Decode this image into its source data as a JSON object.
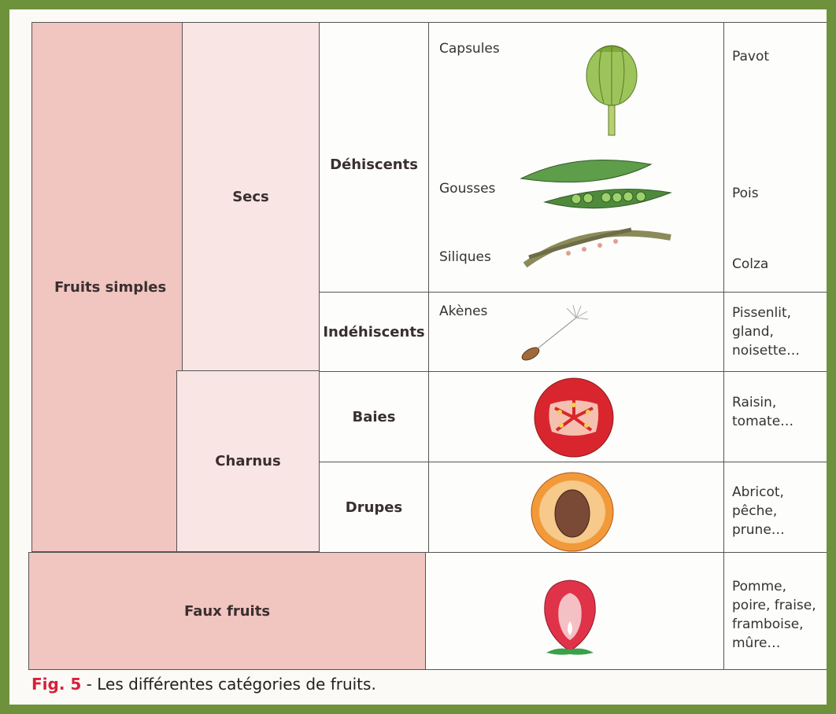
{
  "table": {
    "groups": [
      {
        "label": "Fruits simples",
        "subgroups": [
          {
            "label": "Secs",
            "types": [
              {
                "label": "Déhiscents",
                "kinds": [
                  {
                    "name": "Capsules",
                    "examples": "Pavot"
                  },
                  {
                    "name": "Gousses",
                    "examples": "Pois"
                  },
                  {
                    "name": "Siliques",
                    "examples": "Colza"
                  }
                ]
              },
              {
                "label": "Indéhiscents",
                "kinds": [
                  {
                    "name": "Akènes",
                    "examples": "Pissenlit,\ngland,\nnoisette…"
                  }
                ]
              }
            ]
          },
          {
            "label": "Charnus",
            "types": [
              {
                "label": "Baies",
                "kinds": [
                  {
                    "examples": "Raisin,\ntomate…"
                  }
                ]
              },
              {
                "label": "Drupes",
                "kinds": [
                  {
                    "examples": "Abricot,\npêche,\nprune…"
                  }
                ]
              }
            ]
          }
        ]
      },
      {
        "label": "Faux fruits",
        "examples": "Pomme,\npoire, fraise,\nframboise,\nmûre…"
      }
    ]
  },
  "caption": {
    "figure": "Fig. 5",
    "text": " - Les différentes catégories de fruits."
  }
}
